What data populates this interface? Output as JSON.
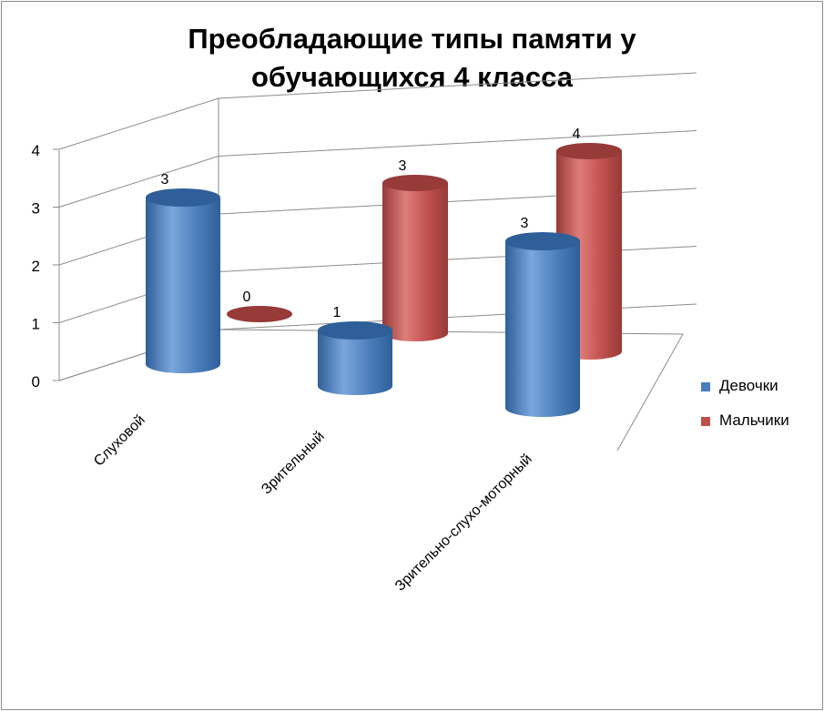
{
  "chart_data": {
    "type": "bar",
    "style": "3d-cylinder",
    "title_lines": [
      "Преобладающие типы памяти у",
      "обучающихся 4 класса"
    ],
    "categories": [
      "Слуховой",
      "Зрительный",
      "Зрительно-слухо-моторный"
    ],
    "series": [
      {
        "name": "Девочки",
        "values": [
          3,
          1,
          3
        ],
        "color": "#4a7ebb"
      },
      {
        "name": "Мальчики",
        "values": [
          0,
          3,
          4
        ],
        "color": "#c0504d"
      }
    ],
    "ylim": [
      0,
      4
    ],
    "y_ticks": [
      "0",
      "1",
      "2",
      "3",
      "4"
    ],
    "data_labels": true,
    "grid": true,
    "legend_position": "right"
  }
}
